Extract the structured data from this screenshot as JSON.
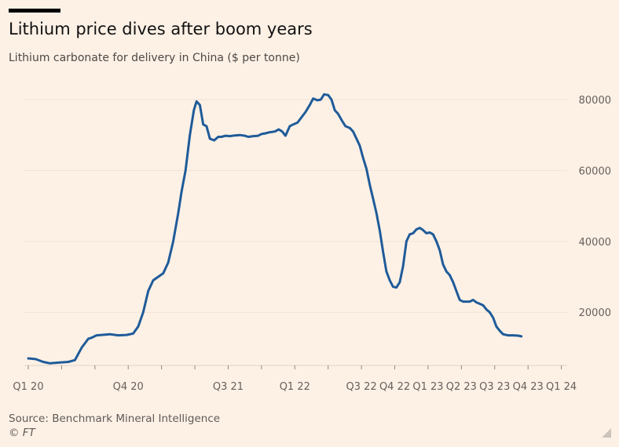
{
  "header": {
    "title": "Lithium price dives after boom years",
    "subtitle": "Lithium carbonate for delivery in China ($ per tonne)"
  },
  "footer": {
    "source": "Source: Benchmark Mineral Intelligence",
    "copyright": "© FT"
  },
  "colors": {
    "background": "#fdf1e6",
    "line": "#1f5b99",
    "grid": "#efe2d5"
  },
  "chart_data": {
    "type": "line",
    "title": "Lithium price dives after boom years",
    "subtitle": "Lithium carbonate for delivery in China ($ per tonne)",
    "xlabel": "",
    "ylabel": "",
    "ylim": [
      5000,
      82000
    ],
    "y_ticks": [
      20000,
      40000,
      60000,
      80000
    ],
    "x_ticks": [
      {
        "label": "Q1 20",
        "x": 0
      },
      {
        "label": "Q4 20",
        "x": 3
      },
      {
        "label": "Q3 21",
        "x": 6
      },
      {
        "label": "Q1 22",
        "x": 8
      },
      {
        "label": "Q3 22",
        "x": 10
      },
      {
        "label": "Q4 22",
        "x": 11
      },
      {
        "label": "Q1 23",
        "x": 12
      },
      {
        "label": "Q2 23",
        "x": 13
      },
      {
        "label": "Q3 23",
        "x": 14
      },
      {
        "label": "Q4 23",
        "x": 15
      },
      {
        "label": "Q1 24",
        "x": 16
      }
    ],
    "x_range": [
      0,
      16.08
    ],
    "grid": true,
    "series": [
      {
        "values": [
          [
            0,
            7000
          ],
          [
            0.22,
            6800
          ],
          [
            0.45,
            6000
          ],
          [
            0.65,
            5600
          ],
          [
            0.9,
            5800
          ],
          [
            1.2,
            6000
          ],
          [
            1.4,
            6500
          ],
          [
            1.6,
            10000
          ],
          [
            1.8,
            12500
          ],
          [
            1.9,
            12800
          ],
          [
            2.05,
            13500
          ],
          [
            2.2,
            13600
          ],
          [
            2.45,
            13800
          ],
          [
            2.7,
            13500
          ],
          [
            2.95,
            13600
          ],
          [
            3.15,
            14000
          ],
          [
            3.3,
            16000
          ],
          [
            3.45,
            20000
          ],
          [
            3.6,
            26000
          ],
          [
            3.75,
            29000
          ],
          [
            3.9,
            30000
          ],
          [
            4.05,
            31000
          ],
          [
            4.2,
            34000
          ],
          [
            4.35,
            40000
          ],
          [
            4.5,
            48000
          ],
          [
            4.6,
            54000
          ],
          [
            4.72,
            60000
          ],
          [
            4.85,
            70000
          ],
          [
            4.97,
            77000
          ],
          [
            5.05,
            79500
          ],
          [
            5.15,
            78500
          ],
          [
            5.25,
            73000
          ],
          [
            5.35,
            72500
          ],
          [
            5.45,
            69000
          ],
          [
            5.58,
            68500
          ],
          [
            5.7,
            69500
          ],
          [
            5.8,
            69500
          ],
          [
            5.92,
            69800
          ],
          [
            6.05,
            69700
          ],
          [
            6.2,
            69900
          ],
          [
            6.35,
            70000
          ],
          [
            6.5,
            69800
          ],
          [
            6.6,
            69500
          ],
          [
            6.75,
            69700
          ],
          [
            6.9,
            69800
          ],
          [
            7.0,
            70300
          ],
          [
            7.12,
            70500
          ],
          [
            7.25,
            70800
          ],
          [
            7.4,
            71000
          ],
          [
            7.52,
            71600
          ],
          [
            7.62,
            71000
          ],
          [
            7.72,
            69800
          ],
          [
            7.85,
            72500
          ],
          [
            7.95,
            73000
          ],
          [
            8.08,
            73500
          ],
          [
            8.2,
            75000
          ],
          [
            8.32,
            76500
          ],
          [
            8.45,
            78500
          ],
          [
            8.55,
            80300
          ],
          [
            8.68,
            79800
          ],
          [
            8.78,
            80000
          ],
          [
            8.88,
            81500
          ],
          [
            9.0,
            81300
          ],
          [
            9.1,
            80000
          ],
          [
            9.2,
            77000
          ],
          [
            9.3,
            76000
          ],
          [
            9.42,
            74000
          ],
          [
            9.52,
            72500
          ],
          [
            9.65,
            72000
          ],
          [
            9.75,
            71000
          ],
          [
            9.85,
            69000
          ],
          [
            9.95,
            67000
          ],
          [
            10.05,
            63500
          ],
          [
            10.15,
            60500
          ],
          [
            10.25,
            56000
          ],
          [
            10.35,
            52000
          ],
          [
            10.45,
            48000
          ],
          [
            10.55,
            43000
          ],
          [
            10.65,
            37000
          ],
          [
            10.75,
            31500
          ],
          [
            10.85,
            29000
          ],
          [
            10.95,
            27200
          ],
          [
            11.05,
            27000
          ],
          [
            11.15,
            28500
          ],
          [
            11.25,
            33000
          ],
          [
            11.35,
            40000
          ],
          [
            11.45,
            42000
          ],
          [
            11.55,
            42300
          ],
          [
            11.65,
            43400
          ],
          [
            11.75,
            43800
          ],
          [
            11.85,
            43200
          ],
          [
            11.95,
            42300
          ],
          [
            12.05,
            42500
          ],
          [
            12.15,
            42000
          ],
          [
            12.25,
            40000
          ],
          [
            12.35,
            37500
          ],
          [
            12.45,
            33500
          ],
          [
            12.55,
            31500
          ],
          [
            12.65,
            30500
          ],
          [
            12.75,
            28500
          ],
          [
            12.85,
            26000
          ],
          [
            12.95,
            23500
          ],
          [
            13.05,
            23000
          ],
          [
            13.15,
            23000
          ],
          [
            13.25,
            23000
          ],
          [
            13.35,
            23500
          ],
          [
            13.45,
            22800
          ],
          [
            13.55,
            22400
          ],
          [
            13.65,
            22000
          ],
          [
            13.75,
            20800
          ],
          [
            13.85,
            20000
          ],
          [
            13.95,
            18500
          ],
          [
            14.05,
            16000
          ],
          [
            14.15,
            14800
          ],
          [
            14.25,
            13800
          ],
          [
            14.4,
            13500
          ],
          [
            14.55,
            13500
          ],
          [
            14.7,
            13400
          ],
          [
            14.8,
            13200
          ]
        ]
      }
    ]
  }
}
